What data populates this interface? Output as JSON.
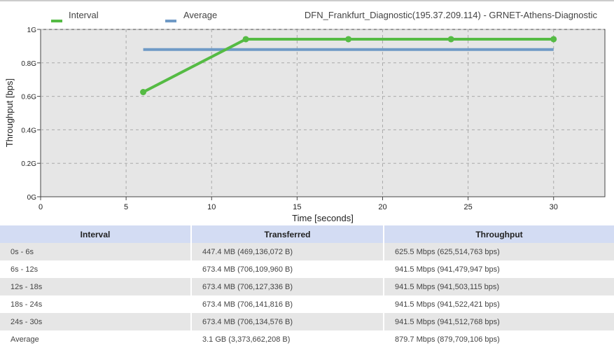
{
  "chart_data": {
    "type": "line",
    "title": "DFN_Frankfurt_Diagnostic(195.37.209.114) - GRNET-Athens-Diagnostic",
    "xlabel": "Time [seconds]",
    "ylabel": "Throughput [bps]",
    "xlim": [
      0,
      33
    ],
    "ylim": [
      0,
      1000000000
    ],
    "x_ticks": [
      0,
      5,
      10,
      15,
      20,
      25,
      30
    ],
    "x_tick_labels": [
      "0",
      "5",
      "10",
      "15",
      "20",
      "25",
      "30"
    ],
    "y_ticks": [
      0,
      200000000,
      400000000,
      600000000,
      800000000,
      1000000000
    ],
    "y_tick_labels": [
      "0G",
      "0.2G",
      "0.4G",
      "0.6G",
      "0.8G",
      "1G"
    ],
    "grid": true,
    "legend_position": "top-left",
    "series": [
      {
        "name": "Interval",
        "color": "#55bb44",
        "x": [
          6,
          12,
          18,
          24,
          30
        ],
        "y": [
          625514763,
          941479947,
          941503115,
          941522421,
          941512768
        ]
      },
      {
        "name": "Average",
        "color": "#6f9ac6",
        "x": [
          6,
          30
        ],
        "y": [
          879709106,
          879709106
        ]
      }
    ]
  },
  "table": {
    "headers": [
      "Interval",
      "Transferred",
      "Throughput"
    ],
    "rows": [
      [
        "0s - 6s",
        "447.4 MB (469,136,072 B)",
        "625.5 Mbps (625,514,763 bps)"
      ],
      [
        "6s - 12s",
        "673.4 MB (706,109,960 B)",
        "941.5 Mbps (941,479,947 bps)"
      ],
      [
        "12s - 18s",
        "673.4 MB (706,127,336 B)",
        "941.5 Mbps (941,503,115 bps)"
      ],
      [
        "18s - 24s",
        "673.4 MB (706,141,816 B)",
        "941.5 Mbps (941,522,421 bps)"
      ],
      [
        "24s - 30s",
        "673.4 MB (706,134,576 B)",
        "941.5 Mbps (941,512,768 bps)"
      ],
      [
        "Average",
        "3.1 GB (3,373,662,208 B)",
        "879.7 Mbps (879,709,106 bps)"
      ]
    ]
  }
}
